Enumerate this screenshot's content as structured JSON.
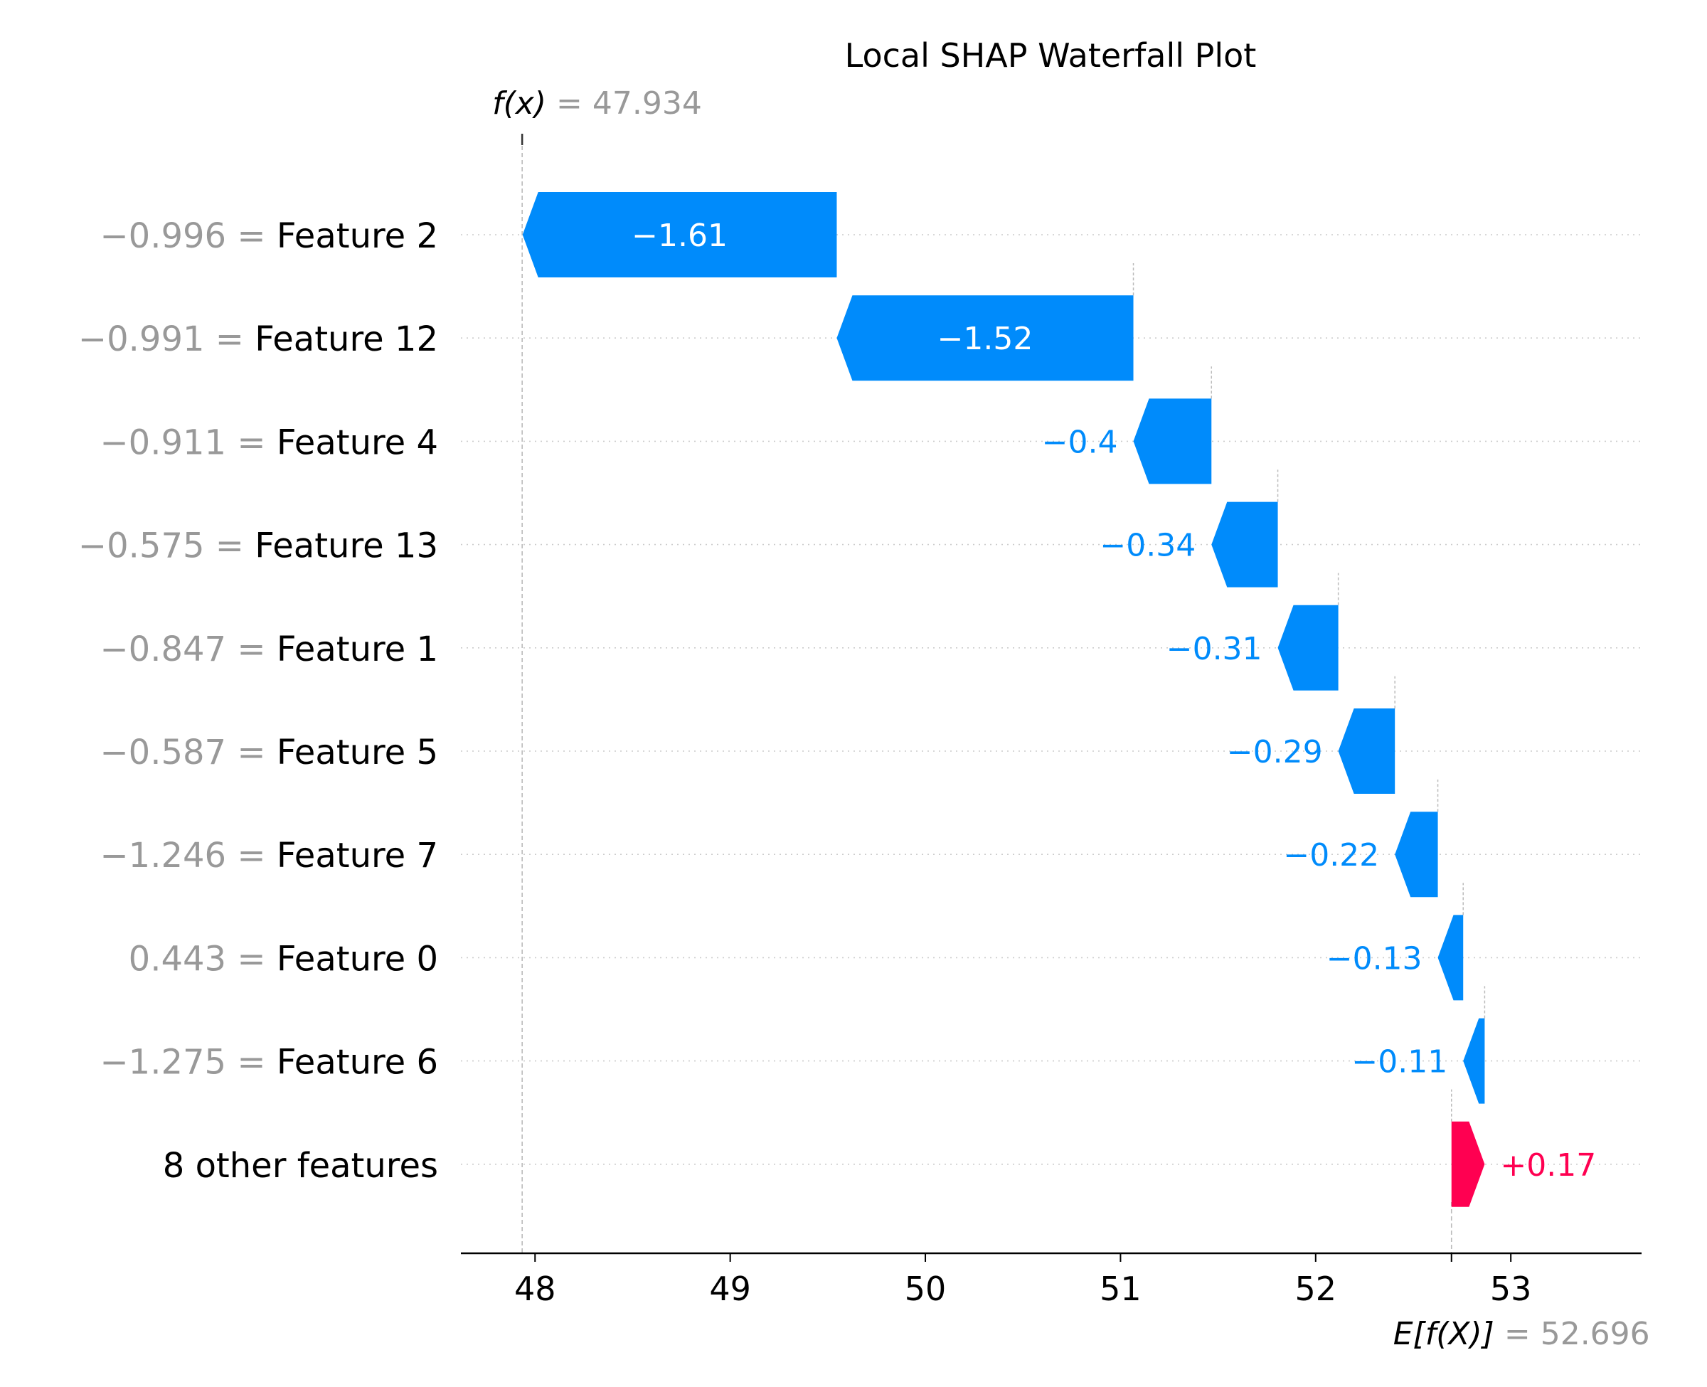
{
  "chart_data": {
    "type": "bar",
    "subtype": "shap-waterfall",
    "title": "Local SHAP Waterfall Plot",
    "fx_label": "f(x)",
    "fx_value": "47.934",
    "ef_label": "E[f(X)]",
    "ef_value": "52.696",
    "base_value": 52.696,
    "xlim": [
      47.62,
      53.67
    ],
    "x_ticks": [
      48,
      49,
      50,
      51,
      52,
      53
    ],
    "x_tick_labels": [
      "48",
      "49",
      "50",
      "51",
      "52",
      "53"
    ],
    "grid": "dotted horizontal row lines",
    "colors": {
      "negative": "#008bfb",
      "positive": "#ff0051",
      "value_text": "#999999",
      "label_text": "#000000"
    },
    "rows": [
      {
        "feature_value": "−0.996",
        "feature": "Feature 2",
        "shap": -1.61,
        "label": "−1.61"
      },
      {
        "feature_value": "−0.991",
        "feature": "Feature 12",
        "shap": -1.52,
        "label": "−1.52"
      },
      {
        "feature_value": "−0.911",
        "feature": "Feature 4",
        "shap": -0.4,
        "label": "−0.4"
      },
      {
        "feature_value": "−0.575",
        "feature": "Feature 13",
        "shap": -0.34,
        "label": "−0.34"
      },
      {
        "feature_value": "−0.847",
        "feature": "Feature 1",
        "shap": -0.31,
        "label": "−0.31"
      },
      {
        "feature_value": "−0.587",
        "feature": "Feature 5",
        "shap": -0.29,
        "label": "−0.29"
      },
      {
        "feature_value": "−1.246",
        "feature": "Feature 7",
        "shap": -0.22,
        "label": "−0.22"
      },
      {
        "feature_value": "0.443",
        "feature": "Feature 0",
        "shap": -0.13,
        "label": "−0.13"
      },
      {
        "feature_value": "−1.275",
        "feature": "Feature 6",
        "shap": -0.11,
        "label": "−0.11"
      },
      {
        "feature_value": "",
        "feature": "8 other features",
        "shap": 0.17,
        "label": "+0.17"
      }
    ]
  }
}
